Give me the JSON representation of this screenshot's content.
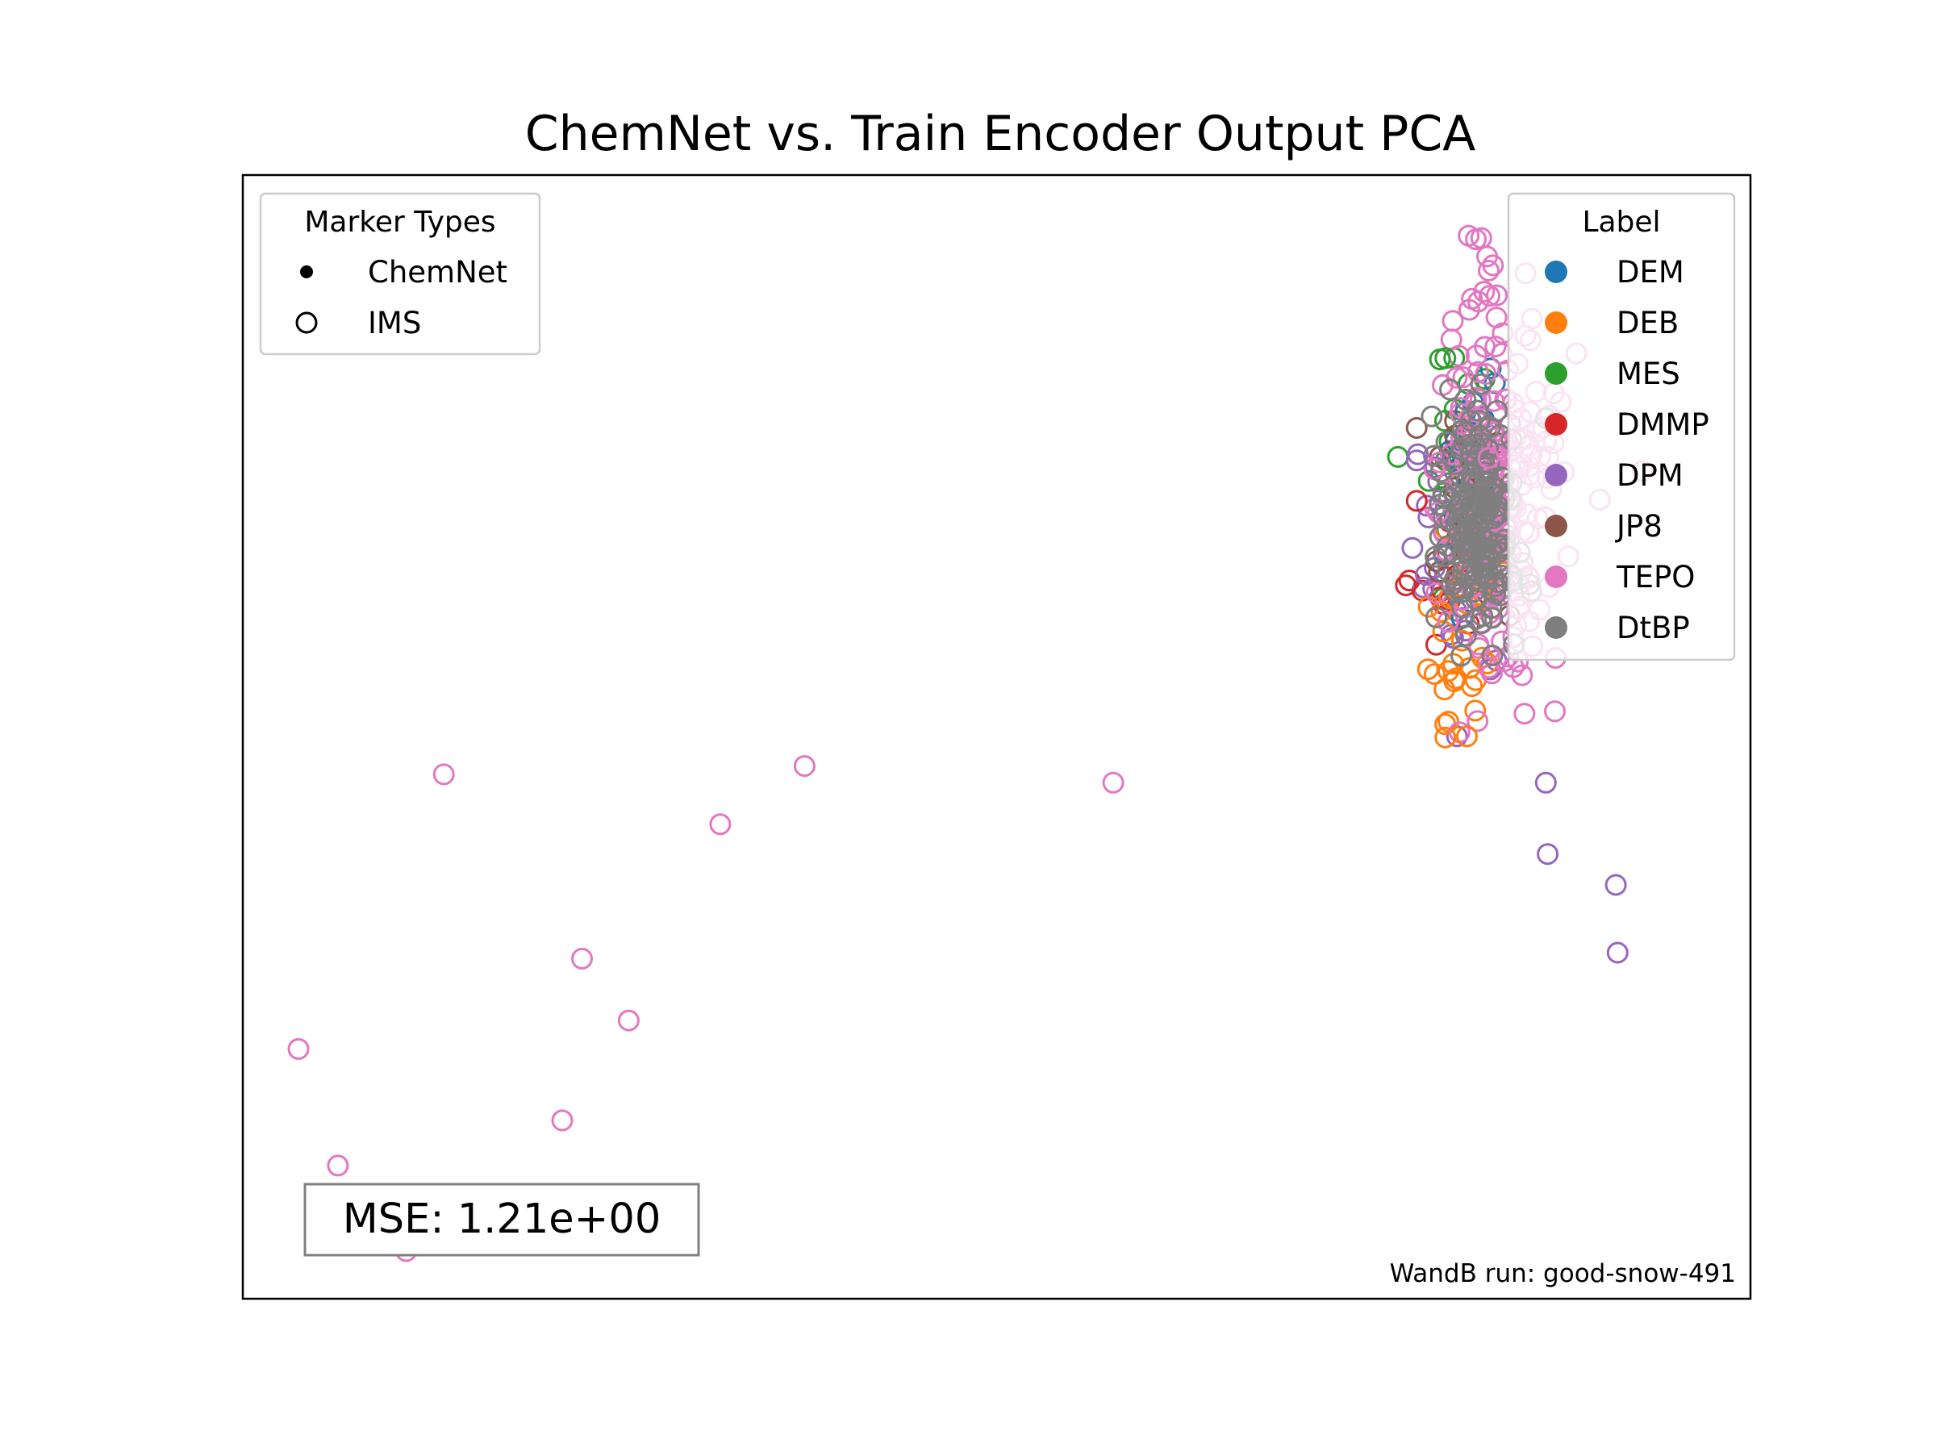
{
  "chart_data": {
    "type": "scatter",
    "title": "ChemNet vs. Train Encoder Output PCA",
    "xlabel": "",
    "ylabel": "",
    "axes_ticks": "none",
    "grid": false,
    "marker_legend": {
      "title": "Marker Types",
      "placement": "top-left",
      "items": [
        {
          "label": "ChemNet",
          "marker": "filled"
        },
        {
          "label": "IMS",
          "marker": "hollow"
        }
      ]
    },
    "label_legend": {
      "title": "Label",
      "placement": "top-right",
      "items": [
        {
          "label": "DEM",
          "color": "#1f77b4"
        },
        {
          "label": "DEB",
          "color": "#ff7f0e"
        },
        {
          "label": "MES",
          "color": "#2ca02c"
        },
        {
          "label": "DMMP",
          "color": "#d62728"
        },
        {
          "label": "DPM",
          "color": "#9467bd"
        },
        {
          "label": "JP8",
          "color": "#8c564b"
        },
        {
          "label": "TEPO",
          "color": "#e377c2"
        },
        {
          "label": "DtBP",
          "color": "#7f7f7f"
        }
      ]
    },
    "annotations": {
      "mse": "MSE: 1.21e+00",
      "wandb": "WandB run: good-snow-491"
    },
    "outliers": [
      {
        "label": "TEPO",
        "x": 5.44,
        "y": 7.97
      },
      {
        "label": "TEPO",
        "x": 3.35,
        "y": 5.24
      },
      {
        "label": "TEPO",
        "x": 1.16,
        "y": 4.89
      },
      {
        "label": "TEPO",
        "x": 0.39,
        "y": 3.76
      },
      {
        "label": "TEPO",
        "x": -0.38,
        "y": 5.31
      },
      {
        "label": "TEPO",
        "x": -1.19,
        "y": 3.0
      },
      {
        "label": "TEPO",
        "x": -0.59,
        "y": 1.3
      },
      {
        "label": "TEPO",
        "x": 0.65,
        "y": 3.24
      },
      {
        "label": "TEPO",
        "x": 1.63,
        "y": 5.38
      },
      {
        "label": "TEPO",
        "x": 0.28,
        "y": 2.4
      },
      {
        "label": "TEPO",
        "x": -0.97,
        "y": 2.02
      },
      {
        "label": "TEPO",
        "x": 5.4,
        "y": 9.82
      },
      {
        "label": "TEPO",
        "x": 5.33,
        "y": 9.84
      },
      {
        "label": "TEPO",
        "x": 5.37,
        "y": 9.81
      },
      {
        "label": "TEPO",
        "x": 5.52,
        "y": 9.02
      },
      {
        "label": "TEPO",
        "x": 6.3,
        "y": 7.86
      },
      {
        "label": "TEPO",
        "x": 5.81,
        "y": 5.84
      },
      {
        "label": "DPM",
        "x": 5.76,
        "y": 5.24
      },
      {
        "label": "DPM",
        "x": 5.77,
        "y": 4.64
      },
      {
        "label": "DPM",
        "x": 6.15,
        "y": 4.38
      },
      {
        "label": "DPM",
        "x": 6.16,
        "y": 3.81
      },
      {
        "label": "DPM",
        "x": 5.04,
        "y": 7.95
      },
      {
        "label": "DMMP",
        "x": 5.04,
        "y": 7.61
      },
      {
        "label": "DMMP",
        "x": 4.98,
        "y": 6.9
      },
      {
        "label": "MES",
        "x": 5.2,
        "y": 8.81
      },
      {
        "label": "MES",
        "x": 5.17,
        "y": 8.8
      },
      {
        "label": "DEB",
        "x": 5.2,
        "y": 5.62
      },
      {
        "label": "DEB",
        "x": 5.32,
        "y": 5.63
      }
    ],
    "clusters": [
      {
        "label": "MES",
        "cx": 5.28,
        "cy": 7.8,
        "sx": 0.12,
        "sy": 0.55,
        "n": 25
      },
      {
        "label": "DMMP",
        "cx": 5.25,
        "cy": 7.2,
        "sx": 0.12,
        "sy": 0.4,
        "n": 25
      },
      {
        "label": "DPM",
        "cx": 5.28,
        "cy": 7.2,
        "sx": 0.14,
        "sy": 0.75,
        "n": 40
      },
      {
        "label": "DEB",
        "cx": 5.3,
        "cy": 6.5,
        "sx": 0.12,
        "sy": 0.45,
        "n": 30
      },
      {
        "label": "DEM",
        "cx": 5.32,
        "cy": 7.8,
        "sx": 0.1,
        "sy": 0.45,
        "n": 20
      },
      {
        "label": "JP8",
        "cx": 5.4,
        "cy": 7.6,
        "sx": 0.12,
        "sy": 0.55,
        "n": 25
      },
      {
        "label": "TEPO",
        "cx": 5.5,
        "cy": 7.7,
        "sx": 0.17,
        "sy": 0.75,
        "n": 220
      },
      {
        "label": "DtBP",
        "cx": 5.38,
        "cy": 7.4,
        "sx": 0.1,
        "sy": 0.45,
        "n": 170
      }
    ],
    "xlim": [
      -1.5,
      6.9
    ],
    "ylim": [
      0.9,
      10.35
    ]
  }
}
